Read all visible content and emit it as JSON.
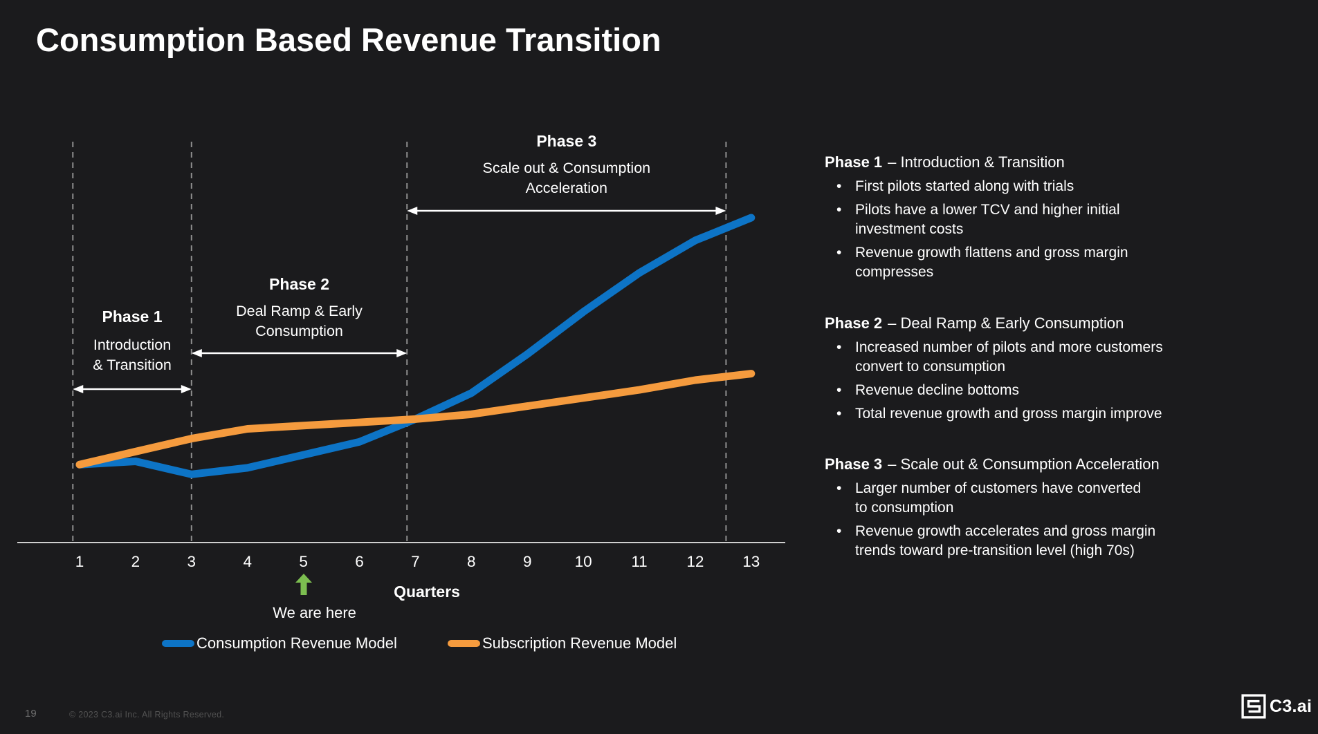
{
  "slide": {
    "title": "Consumption Based Revenue Transition",
    "page_number": "19",
    "copyright": "© 2023 C3.ai Inc. All Rights Reserved.",
    "logo_text": "C3.ai"
  },
  "chart_data": {
    "type": "line",
    "title": "",
    "xlabel": "Quarters",
    "ylabel": "",
    "x": [
      1,
      2,
      3,
      4,
      5,
      6,
      7,
      8,
      9,
      10,
      11,
      12,
      13
    ],
    "x_tick_labels": [
      "1",
      "2",
      "3",
      "4",
      "5",
      "6",
      "7",
      "8",
      "9",
      "10",
      "11",
      "12",
      "13"
    ],
    "ylim": [
      0,
      110
    ],
    "grid": false,
    "legend_position": "bottom",
    "series": [
      {
        "name": "Consumption Revenue Model",
        "color": "#0D74C6",
        "values": [
          24,
          25,
          21,
          23,
          27,
          31,
          38,
          46,
          58,
          71,
          83,
          93,
          100
        ]
      },
      {
        "name": "Subscription Revenue Model",
        "color": "#F59B3E",
        "values": [
          24,
          28,
          32,
          35,
          36,
          37,
          38,
          39.5,
          42,
          44.5,
          47,
          50,
          52
        ]
      }
    ],
    "phases": [
      {
        "name": "Phase 1",
        "label_lines": [
          "Introduction",
          "& Transition"
        ],
        "from_quarter": 0.88,
        "to_quarter": 3
      },
      {
        "name": "Phase 2",
        "label_lines": [
          "Deal Ramp & Early",
          "Consumption"
        ],
        "from_quarter": 3,
        "to_quarter": 6.85
      },
      {
        "name": "Phase 3",
        "label_lines": [
          "Scale out & Consumption",
          "Acceleration"
        ],
        "from_quarter": 6.85,
        "to_quarter": 12.55
      }
    ],
    "annotation": {
      "label": "We are here",
      "quarter": 5,
      "arrow_color": "#7CBE50"
    },
    "colors": {
      "background": "#1b1b1d",
      "dashed_line": "#8f8f8f",
      "axis_line": "#cfcfcf",
      "text": "#ffffff"
    }
  },
  "panel": {
    "bullet_char": "•",
    "sections": [
      {
        "heading_bold": "Phase 1",
        "heading_rest": "– Introduction & Transition",
        "bullets": [
          {
            "lines": [
              "First pilots started along with trials"
            ]
          },
          {
            "lines": [
              "Pilots have a lower TCV and higher initial",
              "investment costs"
            ]
          },
          {
            "lines": [
              "Revenue growth flattens and gross margin",
              "compresses"
            ]
          }
        ]
      },
      {
        "heading_bold": "Phase 2",
        "heading_rest": "– Deal Ramp & Early Consumption",
        "bullets": [
          {
            "lines": [
              "Increased number of pilots and more customers",
              "convert to consumption"
            ]
          },
          {
            "lines": [
              "Revenue decline bottoms"
            ]
          },
          {
            "lines": [
              "Total revenue growth and gross margin improve"
            ]
          }
        ]
      },
      {
        "heading_bold": "Phase 3",
        "heading_rest": "– Scale out & Consumption Acceleration",
        "bullets": [
          {
            "lines": [
              "Larger number of customers have converted",
              "to consumption"
            ]
          },
          {
            "lines": [
              "Revenue growth accelerates and gross margin",
              "trends toward pre-transition level (high 70s)"
            ]
          }
        ]
      }
    ]
  }
}
